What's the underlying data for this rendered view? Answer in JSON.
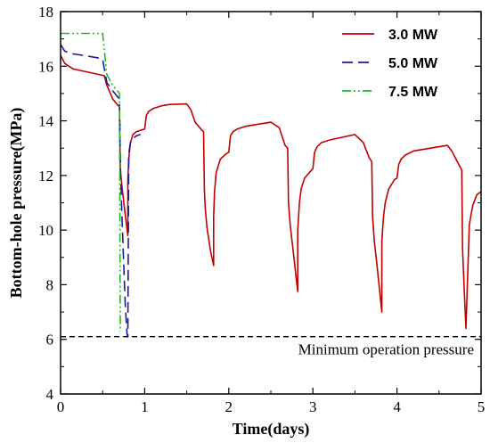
{
  "chart_data": {
    "type": "line",
    "xlabel": "Time(days)",
    "ylabel": "Bottom-hole pressure(MPa)",
    "xlim": [
      0,
      5
    ],
    "ylim": [
      4,
      18
    ],
    "xticks": [
      0,
      1,
      2,
      3,
      4,
      5
    ],
    "yticks": [
      4,
      6,
      8,
      10,
      12,
      14,
      16,
      18
    ],
    "grid": false,
    "legend_position": "top-right",
    "series": [
      {
        "name": "3.0 MW",
        "color": "#c00000",
        "dash": "solid",
        "x": [
          0,
          0.05,
          0.15,
          0.3,
          0.45,
          0.52,
          0.55,
          0.62,
          0.7,
          0.71,
          0.73,
          0.76,
          0.8,
          0.8,
          0.81,
          0.83,
          0.86,
          0.9,
          0.95,
          1.0,
          1.02,
          1.05,
          1.1,
          1.2,
          1.3,
          1.5,
          1.55,
          1.6,
          1.67,
          1.7,
          1.71,
          1.72,
          1.74,
          1.78,
          1.82,
          1.82,
          1.83,
          1.85,
          1.9,
          1.97,
          2.0,
          2.02,
          2.05,
          2.1,
          2.2,
          2.5,
          2.6,
          2.67,
          2.7,
          2.71,
          2.73,
          2.76,
          2.82,
          2.82,
          2.84,
          2.86,
          2.9,
          2.97,
          3.0,
          3.02,
          3.05,
          3.1,
          3.2,
          3.5,
          3.6,
          3.67,
          3.7,
          3.71,
          3.73,
          3.76,
          3.82,
          3.82,
          3.84,
          3.86,
          3.9,
          3.97,
          4.0,
          4.02,
          4.05,
          4.1,
          4.2,
          4.6,
          4.65,
          4.77,
          4.78,
          4.8,
          4.82,
          4.86,
          4.9,
          4.95,
          5.0
        ],
        "y": [
          16.4,
          16.1,
          15.9,
          15.8,
          15.7,
          15.65,
          15.3,
          14.8,
          14.5,
          12.2,
          11.6,
          10.8,
          9.8,
          11.8,
          12.6,
          13.2,
          13.5,
          13.6,
          13.65,
          13.7,
          14.2,
          14.35,
          14.45,
          14.55,
          14.6,
          14.62,
          14.4,
          13.95,
          13.7,
          13.6,
          11.5,
          10.8,
          10.1,
          9.3,
          8.7,
          10.5,
          11.4,
          12.1,
          12.6,
          12.8,
          12.85,
          13.45,
          13.6,
          13.7,
          13.8,
          13.95,
          13.75,
          13.1,
          13.0,
          11.0,
          10.2,
          9.4,
          7.75,
          10.0,
          11.0,
          11.5,
          11.9,
          12.15,
          12.25,
          12.85,
          13.05,
          13.2,
          13.3,
          13.5,
          13.2,
          12.65,
          12.5,
          10.5,
          9.6,
          8.8,
          7.0,
          9.6,
          10.5,
          11.0,
          11.5,
          11.85,
          11.9,
          12.4,
          12.6,
          12.75,
          12.9,
          13.1,
          12.9,
          12.2,
          9.3,
          7.8,
          6.4,
          10.2,
          10.9,
          11.3,
          11.4
        ]
      },
      {
        "name": "5.0 MW",
        "color": "#1a1aa0",
        "dash": "long-dash",
        "x": [
          0,
          0.05,
          0.15,
          0.3,
          0.45,
          0.5,
          0.55,
          0.62,
          0.7,
          0.71,
          0.73,
          0.75,
          0.77,
          0.79,
          0.8,
          0.81,
          0.83,
          0.86,
          0.9,
          0.95
        ],
        "y": [
          16.8,
          16.55,
          16.45,
          16.38,
          16.3,
          16.25,
          15.4,
          15.1,
          14.8,
          12.5,
          10.5,
          8.8,
          7.2,
          6.2,
          6.1,
          12.8,
          13.2,
          13.35,
          13.45,
          13.5
        ]
      },
      {
        "name": "7.5 MW",
        "color": "#22bb22",
        "dash": "dash-dot-dot",
        "x": [
          0,
          0.1,
          0.3,
          0.5,
          0.55,
          0.62,
          0.7,
          0.71,
          0.7
        ],
        "y": [
          17.2,
          17.2,
          17.2,
          17.2,
          15.7,
          15.3,
          15.0,
          6.3,
          6.3
        ]
      }
    ],
    "reference_line": {
      "y": 6.1,
      "label": "Minimum operation pressure",
      "dash": "dashed",
      "color": "#000000"
    }
  }
}
